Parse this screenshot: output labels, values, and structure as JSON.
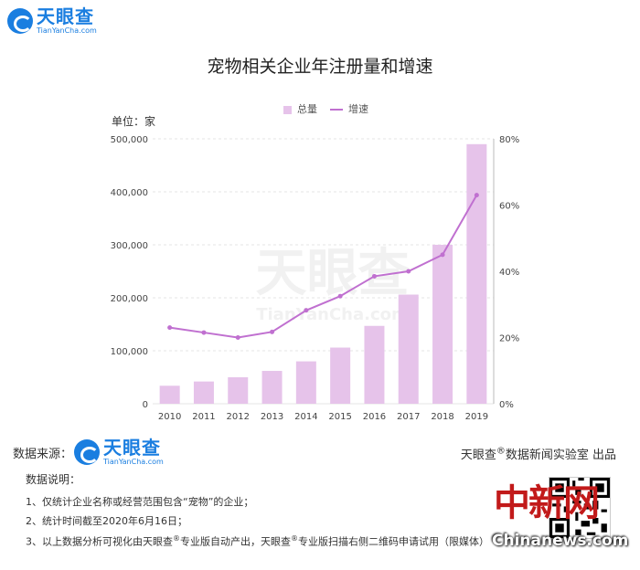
{
  "brand": {
    "name_cn": "天眼查",
    "name_en": "TianYanCha.com"
  },
  "title": "宠物相关企业年注册量和增速",
  "unit_label": "单位：家",
  "chart_data": {
    "type": "bar",
    "categories": [
      "2010",
      "2011",
      "2012",
      "2013",
      "2014",
      "2015",
      "2016",
      "2017",
      "2018",
      "2019"
    ],
    "series": [
      {
        "name": "总量",
        "type": "bar",
        "axis": "left",
        "values": [
          34000,
          42000,
          50000,
          62000,
          80000,
          106000,
          147000,
          206000,
          300000,
          490000
        ]
      },
      {
        "name": "增速",
        "type": "line",
        "axis": "right",
        "values": [
          0.23,
          0.215,
          0.2,
          0.217,
          0.282,
          0.325,
          0.385,
          0.4,
          0.45,
          0.63
        ]
      }
    ],
    "y_left": {
      "ticks": [
        "0",
        "100,000",
        "200,000",
        "300,000",
        "400,000",
        "500,000"
      ],
      "ylim": [
        0,
        500000
      ]
    },
    "y_right": {
      "ticks": [
        "0%",
        "20%",
        "40%",
        "60%",
        "80%"
      ],
      "ylim": [
        0,
        0.8
      ]
    },
    "legend_position": "top-center",
    "colors": {
      "bar": "#e6c3ea",
      "line": "#c070d0",
      "grid": "#e6e6e6"
    }
  },
  "footer": {
    "source_label": "数据来源：",
    "lab_prefix": "天眼查",
    "lab_sup": "®",
    "lab_suffix": "数据新闻实验室 出品",
    "notes_title": "数据说明：",
    "note1": "1、仅统计企业名称或经营范围包含“宠物”的企业；",
    "note2": "2、统计时间截至2020年6月16日；",
    "note3_a": "3、以上数据分析可视化由天眼查",
    "note3_b": "专业版自动产出，天眼查",
    "note3_c": "专业版扫描右侧二维码申请试用（限媒体）",
    "reg_mark": "®"
  },
  "watermark": {
    "cn": "中新网",
    "en": "Chinanews.com"
  }
}
